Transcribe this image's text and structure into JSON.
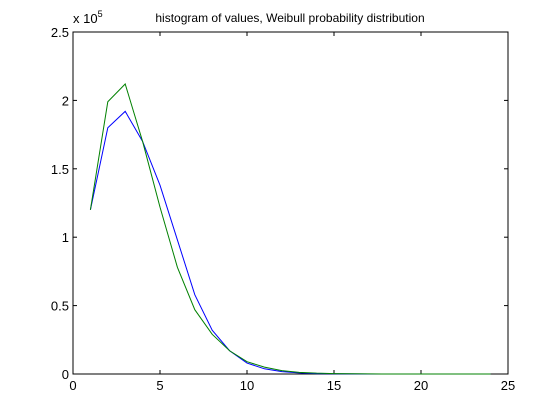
{
  "chart_data": {
    "type": "line",
    "title": "histogram of values, Weibull probability distribution",
    "xlabel": "",
    "ylabel": "",
    "xlim": [
      0,
      25
    ],
    "ylim": [
      0,
      2.5
    ],
    "x_ticks": [
      0,
      5,
      10,
      15,
      20,
      25
    ],
    "y_ticks": [
      0,
      0.5,
      1,
      1.5,
      2,
      2.5
    ],
    "x_tick_labels": [
      "0",
      "5",
      "10",
      "15",
      "20",
      "25"
    ],
    "y_tick_labels": [
      "0",
      "0.5",
      "1",
      "1.5",
      "2",
      "2.5"
    ],
    "y_multiplier_base": "x 10",
    "y_multiplier_exponent": "5",
    "grid": false,
    "legend": "none",
    "x": [
      1,
      2,
      3,
      4,
      5,
      6,
      7,
      8,
      9,
      10,
      11,
      12,
      13,
      14,
      15,
      16,
      17,
      18,
      19,
      20,
      21,
      22,
      23,
      24
    ],
    "series": [
      {
        "color": "#0000ff",
        "values": [
          1.2,
          1.8,
          1.92,
          1.7,
          1.38,
          0.98,
          0.58,
          0.32,
          0.17,
          0.08,
          0.038,
          0.017,
          0.008,
          0.003,
          0.0015,
          0.0006,
          0.0003,
          0.0001,
          0.0001,
          0.0,
          0.0,
          0.0,
          0.0,
          0.0
        ]
      },
      {
        "color": "#008000",
        "values": [
          1.2,
          1.99,
          2.12,
          1.7,
          1.22,
          0.78,
          0.47,
          0.29,
          0.17,
          0.09,
          0.05,
          0.025,
          0.012,
          0.006,
          0.003,
          0.0015,
          0.0007,
          0.0003,
          0.0001,
          0.0001,
          0.0,
          0.0,
          0.0,
          0.0
        ]
      }
    ]
  }
}
